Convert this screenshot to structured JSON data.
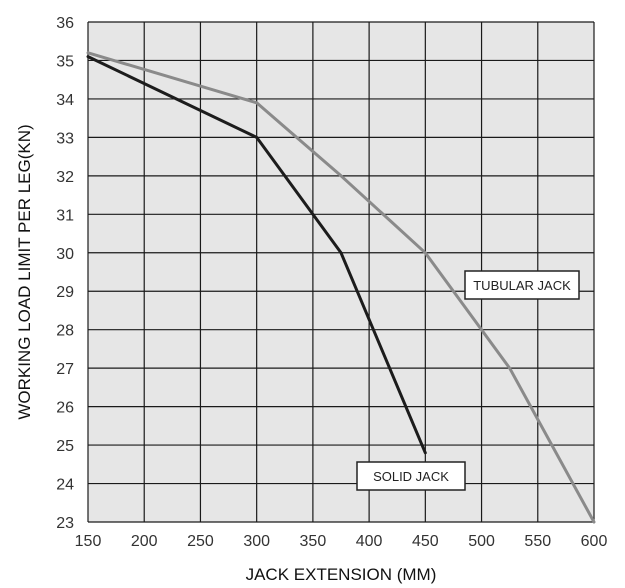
{
  "chart_data": {
    "type": "line",
    "title": "",
    "xlabel": "JACK EXTENSION (MM)",
    "ylabel": "WORKING LOAD LIMIT PER LEG(KN)",
    "xlim": [
      150,
      600
    ],
    "ylim": [
      23,
      36
    ],
    "xticks": [
      150,
      200,
      250,
      300,
      350,
      400,
      450,
      500,
      550,
      600
    ],
    "yticks": [
      23,
      24,
      25,
      26,
      27,
      28,
      29,
      30,
      31,
      32,
      33,
      34,
      35,
      36
    ],
    "grid": true,
    "plot_background": "#e6e6e6",
    "grid_color": "#1a1a1a",
    "series": [
      {
        "name": "SOLID JACK",
        "color": "#1c1c1c",
        "points": [
          [
            150,
            35.1
          ],
          [
            300,
            33
          ],
          [
            375,
            30
          ],
          [
            450,
            24.8
          ]
        ]
      },
      {
        "name": "TUBULAR JACK",
        "color": "#8a8a8a",
        "points": [
          [
            150,
            35.2
          ],
          [
            300,
            33.9
          ],
          [
            375,
            32
          ],
          [
            450,
            30
          ],
          [
            525,
            27
          ],
          [
            600,
            23
          ]
        ]
      }
    ]
  }
}
